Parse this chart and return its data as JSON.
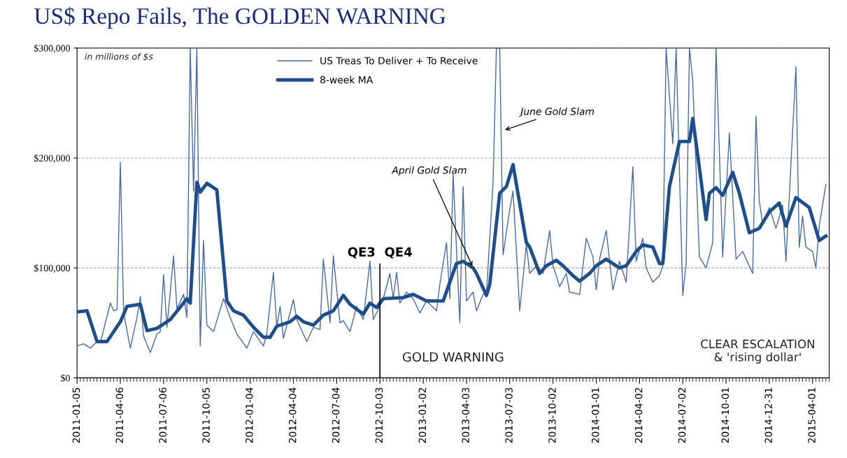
{
  "chart_data": {
    "type": "line",
    "title": "US$ Repo Fails, The GOLDEN WARNING",
    "xlim": [
      "2011-01-05",
      "2015-05-06"
    ],
    "xticks": [
      "2011-01-05",
      "2011-04-06",
      "2011-07-06",
      "2011-10-05",
      "2012-01-04",
      "2012-04-04",
      "2012-07-04",
      "2012-10-03",
      "2013-01-02",
      "2013-04-03",
      "2013-07-03",
      "2013-10-02",
      "2014-01-01",
      "2014-04-02",
      "2014-07-02",
      "2014-10-01",
      "2014-12-31",
      "2015-04-01"
    ],
    "ylim": [
      0,
      300000
    ],
    "yticks": [
      {
        "value": 0,
        "label": "$0"
      },
      {
        "value": 100000,
        "label": "$100,000"
      },
      {
        "value": 200000,
        "label": "$200,000"
      },
      {
        "value": 300000,
        "label": "$300,000"
      }
    ],
    "grid": "y",
    "legend": "top",
    "series": [
      {
        "name": "US Treas To Deliver + To Receive",
        "color": "#4a6a9c",
        "line_style": "solid",
        "x": [
          "2011-01-05",
          "2011-01-19",
          "2011-02-02",
          "2011-02-16",
          "2011-02-23",
          "2011-03-16",
          "2011-03-23",
          "2011-03-30",
          "2011-04-06",
          "2011-04-13",
          "2011-04-27",
          "2011-05-11",
          "2011-05-18",
          "2011-05-25",
          "2011-06-08",
          "2011-06-22",
          "2011-06-29",
          "2011-07-06",
          "2011-07-13",
          "2011-07-27",
          "2011-08-03",
          "2011-08-17",
          "2011-08-24",
          "2011-08-31",
          "2011-09-07",
          "2011-09-14",
          "2011-09-21",
          "2011-09-28",
          "2011-10-05",
          "2011-10-19",
          "2011-11-09",
          "2011-11-23",
          "2011-12-07",
          "2011-12-28",
          "2012-01-11",
          "2012-02-01",
          "2012-02-08",
          "2012-02-22",
          "2012-02-29",
          "2012-03-07",
          "2012-03-14",
          "2012-04-04",
          "2012-04-11",
          "2012-05-02",
          "2012-05-16",
          "2012-05-30",
          "2012-06-06",
          "2012-06-20",
          "2012-06-27",
          "2012-07-11",
          "2012-07-18",
          "2012-08-01",
          "2012-08-15",
          "2012-08-29",
          "2012-09-12",
          "2012-09-19",
          "2012-10-10",
          "2012-10-24",
          "2012-10-31",
          "2012-11-07",
          "2012-11-14",
          "2012-11-28",
          "2012-12-12",
          "2012-12-26",
          "2013-01-09",
          "2013-01-30",
          "2013-02-06",
          "2013-02-20",
          "2013-02-27",
          "2013-03-06",
          "2013-03-20",
          "2013-03-27",
          "2013-04-03",
          "2013-04-17",
          "2013-04-24",
          "2013-05-08",
          "2013-05-15",
          "2013-05-29",
          "2013-06-05",
          "2013-06-12",
          "2013-06-19",
          "2013-07-03",
          "2013-07-10",
          "2013-07-24",
          "2013-08-07",
          "2013-08-14",
          "2013-08-28",
          "2013-09-11",
          "2013-09-25",
          "2013-10-02",
          "2013-10-16",
          "2013-10-30",
          "2013-11-06",
          "2013-11-27",
          "2013-12-11",
          "2013-12-25",
          "2014-01-01",
          "2014-01-08",
          "2014-01-22",
          "2014-02-05",
          "2014-02-19",
          "2014-03-05",
          "2014-03-19",
          "2014-03-26",
          "2014-04-09",
          "2014-04-16",
          "2014-04-30",
          "2014-05-14",
          "2014-05-21",
          "2014-05-28",
          "2014-06-11",
          "2014-06-18",
          "2014-07-02",
          "2014-07-09",
          "2014-07-16",
          "2014-07-23",
          "2014-08-06",
          "2014-08-20",
          "2014-09-03",
          "2014-09-10",
          "2014-09-24",
          "2014-10-08",
          "2014-10-22",
          "2014-11-05",
          "2014-11-26",
          "2014-12-03",
          "2014-12-10",
          "2014-12-17",
          "2014-12-31",
          "2015-01-14",
          "2015-01-28",
          "2015-02-04",
          "2015-02-25",
          "2015-03-04",
          "2015-03-11",
          "2015-03-18",
          "2015-04-01",
          "2015-04-08",
          "2015-04-15",
          "2015-04-29"
        ],
        "values": [
          29000,
          31000,
          27000,
          33000,
          32000,
          68000,
          61000,
          62000,
          196000,
          59000,
          27000,
          55000,
          74000,
          38000,
          23000,
          40000,
          42000,
          94000,
          46000,
          111000,
          63000,
          76000,
          55000,
          300000,
          170000,
          300000,
          29000,
          125000,
          48000,
          42000,
          72000,
          55000,
          40000,
          27000,
          42000,
          29000,
          40000,
          96000,
          46000,
          65000,
          36000,
          71000,
          53000,
          33000,
          46000,
          44000,
          108000,
          50000,
          111000,
          50000,
          52000,
          42000,
          65000,
          53000,
          106000,
          53000,
          72000,
          95000,
          72000,
          96000,
          68000,
          78000,
          72000,
          59000,
          70000,
          61000,
          85000,
          123000,
          72000,
          185000,
          50000,
          174000,
          70000,
          78000,
          61000,
          76000,
          76000,
          178000,
          300000,
          300000,
          112000,
          153000,
          170000,
          61000,
          121000,
          95000,
          102000,
          95000,
          134000,
          102000,
          83000,
          95000,
          78000,
          76000,
          127000,
          110000,
          80000,
          108000,
          134000,
          80000,
          106000,
          87000,
          192000,
          106000,
          127000,
          100000,
          87000,
          93000,
          102000,
          300000,
          213000,
          300000,
          75000,
          104000,
          300000,
          270000,
          110000,
          100000,
          123000,
          300000,
          110000,
          223000,
          108000,
          115000,
          95000,
          238000,
          161000,
          140000,
          155000,
          136000,
          157000,
          106000,
          283000,
          119000,
          147000,
          119000,
          115000,
          100000,
          138000,
          176000
        ]
      },
      {
        "name": "8-week MA",
        "color": "#1f4e8a",
        "line_style": "solid",
        "x": [
          "2011-01-05",
          "2011-01-26",
          "2011-02-16",
          "2011-03-09",
          "2011-04-06",
          "2011-04-20",
          "2011-05-18",
          "2011-06-01",
          "2011-06-22",
          "2011-07-20",
          "2011-08-24",
          "2011-08-31",
          "2011-09-14",
          "2011-09-21",
          "2011-10-05",
          "2011-10-26",
          "2011-11-16",
          "2011-11-30",
          "2011-12-21",
          "2012-01-11",
          "2012-02-01",
          "2012-02-15",
          "2012-02-29",
          "2012-03-28",
          "2012-04-11",
          "2012-04-25",
          "2012-05-16",
          "2012-06-06",
          "2012-06-27",
          "2012-07-18",
          "2012-08-01",
          "2012-08-29",
          "2012-09-12",
          "2012-09-26",
          "2012-10-10",
          "2012-11-21",
          "2012-12-12",
          "2013-01-09",
          "2013-02-13",
          "2013-02-27",
          "2013-03-13",
          "2013-03-27",
          "2013-04-17",
          "2013-04-24",
          "2013-05-15",
          "2013-05-22",
          "2013-06-12",
          "2013-06-26",
          "2013-07-10",
          "2013-08-07",
          "2013-08-14",
          "2013-09-04",
          "2013-09-18",
          "2013-10-09",
          "2013-10-23",
          "2013-11-13",
          "2013-11-27",
          "2013-12-18",
          "2014-01-01",
          "2014-01-22",
          "2014-02-19",
          "2014-03-05",
          "2014-03-26",
          "2014-04-09",
          "2014-04-30",
          "2014-05-14",
          "2014-05-21",
          "2014-06-04",
          "2014-06-25",
          "2014-07-16",
          "2014-07-23",
          "2014-08-06",
          "2014-08-20",
          "2014-08-27",
          "2014-09-10",
          "2014-09-24",
          "2014-10-15",
          "2014-10-29",
          "2014-11-19",
          "2014-12-10",
          "2014-12-31",
          "2015-01-21",
          "2015-02-04",
          "2015-02-25",
          "2015-03-25",
          "2015-04-15",
          "2015-04-29"
        ],
        "values": [
          60000,
          61000,
          33000,
          33000,
          51000,
          65000,
          67000,
          43000,
          45000,
          53000,
          72000,
          68000,
          178000,
          169000,
          177000,
          171000,
          70000,
          61000,
          57000,
          46000,
          37000,
          37000,
          47000,
          51000,
          56000,
          51000,
          48000,
          57000,
          61000,
          75000,
          67000,
          58000,
          68000,
          64000,
          72000,
          73000,
          76000,
          70000,
          70000,
          87000,
          104000,
          106000,
          100000,
          95000,
          75000,
          85000,
          168000,
          174000,
          194000,
          123000,
          119000,
          95000,
          102000,
          107000,
          102000,
          93000,
          88000,
          95000,
          102000,
          108000,
          100000,
          102000,
          115000,
          121000,
          119000,
          104000,
          104000,
          174000,
          215000,
          215000,
          236000,
          191000,
          144000,
          168000,
          173000,
          166000,
          187000,
          168000,
          132000,
          136000,
          151000,
          159000,
          138000,
          164000,
          155000,
          125000,
          129000
        ]
      }
    ],
    "ref_lines": [
      {
        "axis": "x",
        "value": "2012-10-03",
        "label": "QE3  QE4",
        "color": "#000000"
      }
    ],
    "annotations": [
      "in millions of $s",
      {
        "text": "April Gold Slam",
        "x": "2013-04-17",
        "y": 100000
      },
      {
        "text": "June Gold Slam",
        "x": "2013-06-19",
        "y": 225000
      },
      "GOLD WARNING",
      "CLEAR ESCALATION\n& 'rising dollar'"
    ]
  }
}
